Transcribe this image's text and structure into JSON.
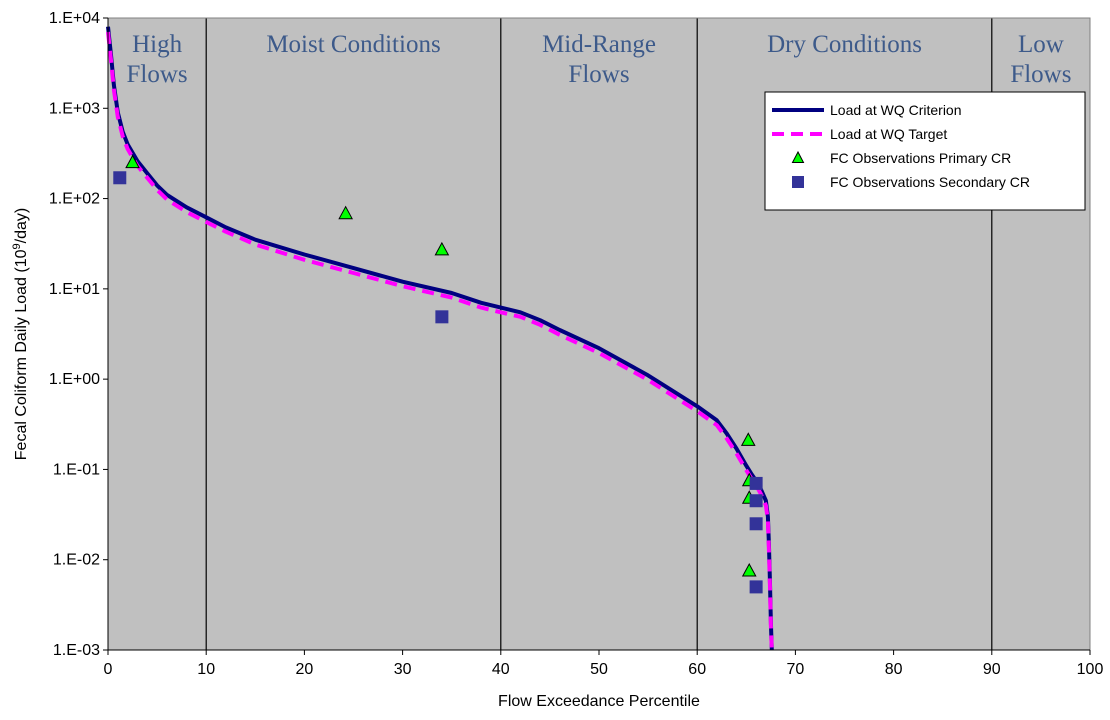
{
  "chart_data": {
    "type": "line",
    "xlabel": "Flow Exceedance Percentile",
    "ylabel_main": "Fecal Coliform Daily Load (10",
    "ylabel_sup": "9",
    "ylabel_tail": "/day)",
    "xlim": [
      0,
      100
    ],
    "ylim": [
      0.001,
      10000
    ],
    "yscale": "log",
    "x_ticks": [
      "0",
      "10",
      "20",
      "30",
      "40",
      "50",
      "60",
      "70",
      "80",
      "90",
      "100"
    ],
    "y_ticks": [
      "1.E-03",
      "1.E-02",
      "1.E-01",
      "1.E+00",
      "1.E+01",
      "1.E+02",
      "1.E+03",
      "1.E+04"
    ],
    "grid": false,
    "legend_position": "top-right",
    "zones": [
      {
        "lines": [
          "High",
          "Flows"
        ],
        "from": 0,
        "to": 10
      },
      {
        "lines": [
          "Moist Conditions"
        ],
        "from": 10,
        "to": 40
      },
      {
        "lines": [
          "Mid-Range",
          "Flows"
        ],
        "from": 40,
        "to": 60
      },
      {
        "lines": [
          "Dry Conditions"
        ],
        "from": 60,
        "to": 90
      },
      {
        "lines": [
          "Low",
          "Flows"
        ],
        "from": 90,
        "to": 100
      }
    ],
    "zone_boundaries": [
      10,
      40,
      60,
      90
    ],
    "series": [
      {
        "name": "Load at WQ Criterion",
        "style": "solid",
        "color": "#000080",
        "x": [
          0,
          0.3,
          0.6,
          1.0,
          1.5,
          2,
          3,
          4,
          5,
          6,
          8,
          10,
          12,
          15,
          20,
          25,
          30,
          35,
          38,
          40,
          42,
          44,
          46,
          50,
          55,
          60,
          62,
          63,
          64,
          65,
          65.5,
          66,
          66.5,
          67,
          67.2,
          67.3,
          67.4,
          67.5,
          67.6
        ],
        "y": [
          8000,
          4000,
          1800,
          900,
          550,
          400,
          260,
          190,
          140,
          110,
          80,
          62,
          48,
          35,
          24,
          17,
          12,
          9,
          7,
          6.2,
          5.5,
          4.5,
          3.5,
          2.2,
          1.1,
          0.5,
          0.35,
          0.25,
          0.17,
          0.11,
          0.09,
          0.075,
          0.06,
          0.045,
          0.03,
          0.015,
          0.006,
          0.002,
          0.001
        ]
      },
      {
        "name": "Load at WQ Target",
        "style": "dashed",
        "color": "#ff00ff",
        "x": [
          0,
          0.3,
          0.6,
          1.0,
          1.5,
          2,
          3,
          4,
          5,
          6,
          8,
          10,
          12,
          15,
          20,
          25,
          30,
          35,
          38,
          40,
          42,
          44,
          46,
          50,
          55,
          60,
          62,
          63,
          64,
          65,
          65.5,
          66,
          66.5,
          67,
          67.2,
          67.3,
          67.4,
          67.5,
          67.6
        ],
        "y": [
          7000,
          3500,
          1600,
          800,
          490,
          355,
          230,
          170,
          125,
          98,
          71,
          55,
          43,
          31,
          21,
          15,
          10.7,
          8,
          6.2,
          5.5,
          4.9,
          4,
          3.1,
          1.95,
          0.98,
          0.44,
          0.31,
          0.22,
          0.15,
          0.098,
          0.08,
          0.067,
          0.053,
          0.04,
          0.027,
          0.013,
          0.0053,
          0.0018,
          0.0009
        ]
      },
      {
        "name": "FC Observations Primary CR",
        "style": "marker-triangle",
        "color": "#00ff00",
        "x": [
          2.5,
          24.2,
          34,
          65.2,
          65.3,
          65.3,
          65.3
        ],
        "y": [
          250,
          68,
          27,
          0.21,
          0.075,
          0.048,
          0.0075
        ]
      },
      {
        "name": "FC Observations Secondary CR",
        "style": "marker-square",
        "color": "#333399",
        "x": [
          1.2,
          34,
          66,
          66,
          66,
          66
        ],
        "y": [
          170,
          4.9,
          0.07,
          0.045,
          0.025,
          0.005
        ]
      }
    ]
  }
}
